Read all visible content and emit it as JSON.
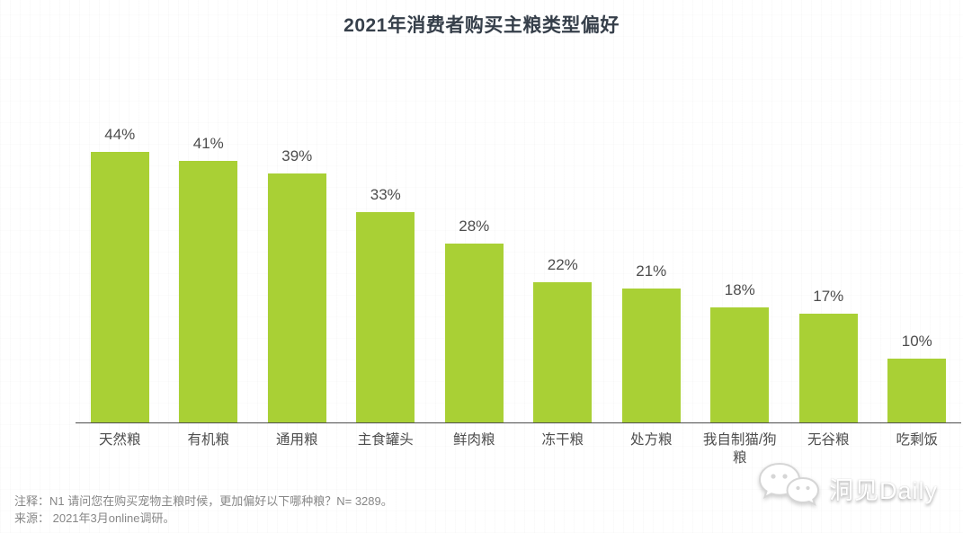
{
  "title": "2021年消费者购买主粮类型偏好",
  "chart_data": {
    "type": "bar",
    "title": "2021年消费者购买主粮类型偏好",
    "categories": [
      "天然粮",
      "有机粮",
      "通用粮",
      "主食罐头",
      "鲜肉粮",
      "冻干粮",
      "处方粮",
      "我自制猫/狗粮",
      "无谷粮",
      "吃剩饭"
    ],
    "values": [
      44,
      41,
      39,
      33,
      28,
      22,
      21,
      18,
      17,
      10
    ],
    "unit": "%",
    "value_label_format": "{value}%",
    "xlabel": "",
    "ylabel": "",
    "ylim": [
      0,
      50
    ],
    "grid": false,
    "legend": "none",
    "bar_color": "#a9d035",
    "axis_color": "#4d4d4d",
    "label_color": "#4d4d4d"
  },
  "footer": {
    "note": "注释：N1 请问您在购买宠物主粮时候，更加偏好以下哪种粮？N= 3289。",
    "source": "来源： 2021年3月online调研。"
  },
  "watermark": {
    "icon": "wechat-icon",
    "text": "洞见Daily"
  },
  "colors": {
    "bar": "#a9d035",
    "title_text": "#363f4a",
    "label_text": "#4d4d4d",
    "footer_text": "#878787"
  }
}
